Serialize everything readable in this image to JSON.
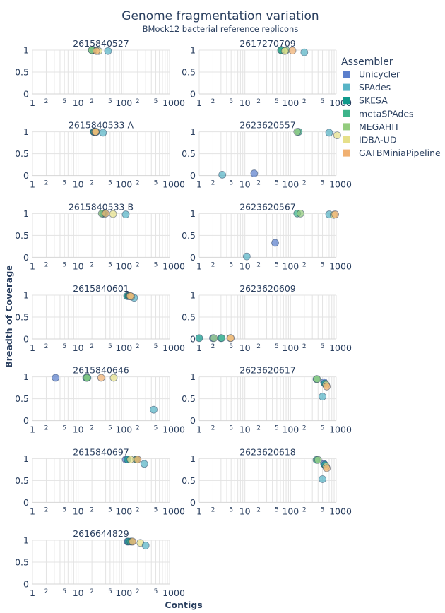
{
  "colors": {
    "Unicycler": "#5b7fcc",
    "SPAdes": "#58b4c6",
    "SKESA": "#109a8c",
    "metaSPAdes": "#3db48a",
    "MEGAHIT": "#93cc7e",
    "IDBA-UD": "#e6e08a",
    "GATBMiniaPipeline": "#f0b071"
  },
  "chart_data": {
    "type": "scatter",
    "title": "Genome fragmentation variation",
    "subtitle": "BMock12 bacterial reference replicons",
    "xlabel": "Contigs",
    "ylabel": "Breadth of Coverage",
    "x_scale": "log",
    "xlim": [
      1,
      1000
    ],
    "ylim": [
      0,
      1
    ],
    "x_ticks": [
      "1",
      "2",
      "5",
      "10",
      "2",
      "5",
      "100",
      "2",
      "5",
      "1000"
    ],
    "y_ticks": [
      "0",
      "0.5",
      "1"
    ],
    "legend": {
      "title": "Assembler",
      "position": "top-right",
      "entries": [
        "Unicycler",
        "SPAdes",
        "SKESA",
        "metaSPAdes",
        "MEGAHIT",
        "IDBA-UD",
        "GATBMiniaPipeline"
      ]
    },
    "panels": [
      {
        "title": "2615840527",
        "points": [
          {
            "s": "Unicycler",
            "x": 22,
            "y": 1
          },
          {
            "s": "SKESA",
            "x": 22,
            "y": 1
          },
          {
            "s": "metaSPAdes",
            "x": 20,
            "y": 1
          },
          {
            "s": "MEGAHIT",
            "x": 20,
            "y": 1
          },
          {
            "s": "SPAdes",
            "x": 45,
            "y": 0.98
          },
          {
            "s": "IDBA-UD",
            "x": 28,
            "y": 0.98
          },
          {
            "s": "GATBMiniaPipeline",
            "x": 25,
            "y": 0.98
          }
        ]
      },
      {
        "title": "2617270709",
        "points": [
          {
            "s": "Unicycler",
            "x": 63,
            "y": 1
          },
          {
            "s": "SKESA",
            "x": 65,
            "y": 1
          },
          {
            "s": "metaSPAdes",
            "x": 62,
            "y": 1
          },
          {
            "s": "MEGAHIT",
            "x": 80,
            "y": 1
          },
          {
            "s": "SPAdes",
            "x": 200,
            "y": 0.95
          },
          {
            "s": "IDBA-UD",
            "x": 75,
            "y": 0.98
          },
          {
            "s": "GATBMiniaPipeline",
            "x": 110,
            "y": 0.99
          }
        ]
      },
      {
        "title": "2615840533 A",
        "points": [
          {
            "s": "Unicycler",
            "x": 22,
            "y": 1
          },
          {
            "s": "SKESA",
            "x": 22,
            "y": 1
          },
          {
            "s": "metaSPAdes",
            "x": 25,
            "y": 1
          },
          {
            "s": "MEGAHIT",
            "x": 23,
            "y": 1
          },
          {
            "s": "SPAdes",
            "x": 35,
            "y": 0.98
          },
          {
            "s": "IDBA-UD",
            "x": 24,
            "y": 1
          },
          {
            "s": "GATBMiniaPipeline",
            "x": 24,
            "y": 1
          }
        ]
      },
      {
        "title": "2623620557",
        "points": [
          {
            "s": "SPAdes",
            "x": 3.2,
            "y": 0.02
          },
          {
            "s": "Unicycler",
            "x": 16,
            "y": 0.05
          },
          {
            "s": "metaSPAdes",
            "x": 150,
            "y": 1
          },
          {
            "s": "MEGAHIT",
            "x": 140,
            "y": 1
          },
          {
            "s": "SPAdes",
            "x": 700,
            "y": 0.98
          },
          {
            "s": "IDBA-UD",
            "x": 1050,
            "y": 0.92
          }
        ]
      },
      {
        "title": "2615840533 B",
        "points": [
          {
            "s": "Unicycler",
            "x": 35,
            "y": 1
          },
          {
            "s": "SKESA",
            "x": 35,
            "y": 1
          },
          {
            "s": "metaSPAdes",
            "x": 38,
            "y": 1
          },
          {
            "s": "MEGAHIT",
            "x": 33,
            "y": 1
          },
          {
            "s": "SPAdes",
            "x": 110,
            "y": 0.98
          },
          {
            "s": "IDBA-UD",
            "x": 58,
            "y": 0.99
          },
          {
            "s": "GATBMiniaPipeline",
            "x": 40,
            "y": 1
          }
        ]
      },
      {
        "title": "2623620567",
        "points": [
          {
            "s": "SPAdes",
            "x": 11,
            "y": 0.02
          },
          {
            "s": "Unicycler",
            "x": 46,
            "y": 0.33
          },
          {
            "s": "metaSPAdes",
            "x": 140,
            "y": 1
          },
          {
            "s": "MEGAHIT",
            "x": 165,
            "y": 1
          },
          {
            "s": "SPAdes",
            "x": 700,
            "y": 0.98
          },
          {
            "s": "IDBA-UD",
            "x": 880,
            "y": 0.97
          },
          {
            "s": "GATBMiniaPipeline",
            "x": 950,
            "y": 0.98
          }
        ]
      },
      {
        "title": "2615840601",
        "points": [
          {
            "s": "Unicycler",
            "x": 125,
            "y": 0.98
          },
          {
            "s": "SKESA",
            "x": 118,
            "y": 0.98
          },
          {
            "s": "metaSPAdes",
            "x": 128,
            "y": 0.98
          },
          {
            "s": "MEGAHIT",
            "x": 135,
            "y": 0.98
          },
          {
            "s": "SPAdes",
            "x": 168,
            "y": 0.94
          },
          {
            "s": "IDBA-UD",
            "x": 145,
            "y": 0.97
          },
          {
            "s": "GATBMiniaPipeline",
            "x": 138,
            "y": 0.98
          }
        ]
      },
      {
        "title": "2623620609",
        "points": [
          {
            "s": "SKESA",
            "x": 1,
            "y": 0.02
          },
          {
            "s": "Unicycler",
            "x": 2,
            "y": 0.02
          },
          {
            "s": "MEGAHIT",
            "x": 2.1,
            "y": 0.02
          },
          {
            "s": "SPAdes",
            "x": 3,
            "y": 0.02
          },
          {
            "s": "metaSPAdes",
            "x": 3.1,
            "y": 0.02
          },
          {
            "s": "IDBA-UD",
            "x": 4.8,
            "y": 0.02
          },
          {
            "s": "GATBMiniaPipeline",
            "x": 4.9,
            "y": 0.02
          }
        ]
      },
      {
        "title": "2615840646",
        "points": [
          {
            "s": "Unicycler",
            "x": 3.2,
            "y": 0.98
          },
          {
            "s": "SKESA",
            "x": 15,
            "y": 0.98
          },
          {
            "s": "metaSPAdes",
            "x": 16,
            "y": 0.98
          },
          {
            "s": "MEGAHIT",
            "x": 15.5,
            "y": 0.98
          },
          {
            "s": "IDBA-UD",
            "x": 60,
            "y": 0.98
          },
          {
            "s": "GATBMiniaPipeline",
            "x": 32,
            "y": 0.98
          },
          {
            "s": "SPAdes",
            "x": 450,
            "y": 0.25
          }
        ]
      },
      {
        "title": "2623620617",
        "points": [
          {
            "s": "metaSPAdes",
            "x": 370,
            "y": 0.95
          },
          {
            "s": "MEGAHIT",
            "x": 380,
            "y": 0.95
          },
          {
            "s": "Unicycler",
            "x": 540,
            "y": 0.88
          },
          {
            "s": "SKESA",
            "x": 560,
            "y": 0.85
          },
          {
            "s": "IDBA-UD",
            "x": 600,
            "y": 0.82
          },
          {
            "s": "GATBMiniaPipeline",
            "x": 620,
            "y": 0.78
          },
          {
            "s": "SPAdes",
            "x": 500,
            "y": 0.55
          }
        ]
      },
      {
        "title": "2615840697",
        "points": [
          {
            "s": "Unicycler",
            "x": 110,
            "y": 0.98
          },
          {
            "s": "SKESA",
            "x": 120,
            "y": 0.98
          },
          {
            "s": "metaSPAdes",
            "x": 185,
            "y": 0.98
          },
          {
            "s": "MEGAHIT",
            "x": 190,
            "y": 0.98
          },
          {
            "s": "SPAdes",
            "x": 280,
            "y": 0.88
          },
          {
            "s": "IDBA-UD",
            "x": 140,
            "y": 0.98
          },
          {
            "s": "GATBMiniaPipeline",
            "x": 200,
            "y": 0.98
          }
        ]
      },
      {
        "title": "2623620618",
        "points": [
          {
            "s": "metaSPAdes",
            "x": 370,
            "y": 0.97
          },
          {
            "s": "MEGAHIT",
            "x": 400,
            "y": 0.97
          },
          {
            "s": "Unicycler",
            "x": 540,
            "y": 0.88
          },
          {
            "s": "SKESA",
            "x": 560,
            "y": 0.86
          },
          {
            "s": "IDBA-UD",
            "x": 600,
            "y": 0.82
          },
          {
            "s": "GATBMiniaPipeline",
            "x": 620,
            "y": 0.78
          },
          {
            "s": "SPAdes",
            "x": 500,
            "y": 0.53
          }
        ]
      },
      {
        "title": "2616644829",
        "points": [
          {
            "s": "Unicycler",
            "x": 120,
            "y": 0.97
          },
          {
            "s": "SKESA",
            "x": 125,
            "y": 0.97
          },
          {
            "s": "metaSPAdes",
            "x": 140,
            "y": 0.97
          },
          {
            "s": "MEGAHIT",
            "x": 150,
            "y": 0.97
          },
          {
            "s": "GATBMiniaPipeline",
            "x": 155,
            "y": 0.97
          },
          {
            "s": "IDBA-UD",
            "x": 230,
            "y": 0.94
          },
          {
            "s": "SPAdes",
            "x": 300,
            "y": 0.88
          }
        ]
      }
    ]
  }
}
